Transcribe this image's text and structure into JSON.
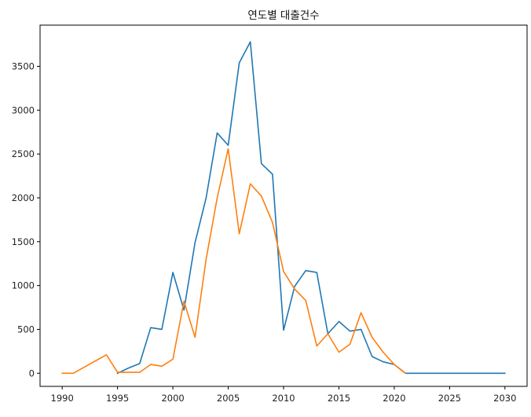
{
  "chart_data": {
    "type": "line",
    "title": "연도별 대출건수",
    "xlabel": "",
    "ylabel": "",
    "xlim": [
      1988,
      2032
    ],
    "ylim": [
      -150,
      3970
    ],
    "grid": false,
    "legend": "none",
    "x_ticks": [
      1990,
      1995,
      2000,
      2005,
      2010,
      2015,
      2020,
      2025,
      2030
    ],
    "y_ticks": [
      0,
      500,
      1000,
      1500,
      2000,
      2500,
      3000,
      3500
    ],
    "series": [
      {
        "color": "#1f77b4",
        "points": [
          [
            1995,
            0
          ],
          [
            1996,
            60
          ],
          [
            1997,
            110
          ],
          [
            1998,
            520
          ],
          [
            1999,
            500
          ],
          [
            2000,
            1150
          ],
          [
            2001,
            720
          ],
          [
            2002,
            1490
          ],
          [
            2003,
            2000
          ],
          [
            2004,
            2740
          ],
          [
            2005,
            2600
          ],
          [
            2006,
            3540
          ],
          [
            2007,
            3780
          ],
          [
            2008,
            2390
          ],
          [
            2009,
            2270
          ],
          [
            2010,
            490
          ],
          [
            2011,
            990
          ],
          [
            2012,
            1170
          ],
          [
            2013,
            1150
          ],
          [
            2014,
            450
          ],
          [
            2015,
            590
          ],
          [
            2016,
            480
          ],
          [
            2017,
            500
          ],
          [
            2018,
            190
          ],
          [
            2019,
            130
          ],
          [
            2020,
            100
          ],
          [
            2021,
            0
          ],
          [
            2022,
            0
          ],
          [
            2023,
            0
          ],
          [
            2024,
            0
          ],
          [
            2025,
            0
          ],
          [
            2026,
            0
          ],
          [
            2027,
            0
          ],
          [
            2028,
            0
          ],
          [
            2029,
            0
          ],
          [
            2030,
            0
          ]
        ]
      },
      {
        "color": "#ff7f0e",
        "points": [
          [
            1990,
            0
          ],
          [
            1991,
            0
          ],
          [
            1994,
            210
          ],
          [
            1995,
            10
          ],
          [
            1996,
            10
          ],
          [
            1997,
            10
          ],
          [
            1998,
            100
          ],
          [
            1999,
            80
          ],
          [
            2000,
            160
          ],
          [
            2001,
            820
          ],
          [
            2002,
            410
          ],
          [
            2003,
            1300
          ],
          [
            2004,
            2000
          ],
          [
            2005,
            2560
          ],
          [
            2006,
            1590
          ],
          [
            2007,
            2160
          ],
          [
            2008,
            2020
          ],
          [
            2009,
            1720
          ],
          [
            2010,
            1160
          ],
          [
            2011,
            960
          ],
          [
            2012,
            830
          ],
          [
            2013,
            310
          ],
          [
            2014,
            450
          ],
          [
            2015,
            240
          ],
          [
            2016,
            330
          ],
          [
            2017,
            690
          ],
          [
            2018,
            410
          ],
          [
            2019,
            240
          ],
          [
            2020,
            100
          ],
          [
            2021,
            0
          ]
        ]
      }
    ]
  }
}
